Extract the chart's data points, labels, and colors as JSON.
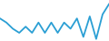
{
  "x": [
    0,
    1,
    2,
    3,
    4,
    5,
    6,
    7,
    8,
    9,
    10,
    11,
    12,
    13,
    14,
    15,
    16,
    17
  ],
  "y": [
    55,
    45,
    30,
    20,
    35,
    20,
    45,
    20,
    45,
    20,
    45,
    30,
    55,
    10,
    60,
    5,
    65,
    90
  ],
  "line_color": "#2b9fd4",
  "linewidth": 1.3,
  "background_color": "#ffffff",
  "ylim": [
    0,
    100
  ],
  "xlim": [
    0,
    17
  ]
}
